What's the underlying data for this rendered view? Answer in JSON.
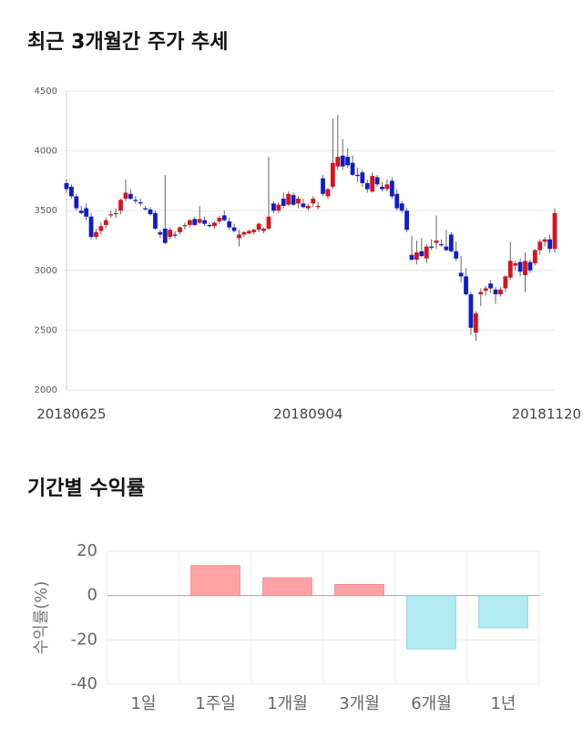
{
  "chart_data": [
    {
      "type": "candlestick",
      "title": "최근 3개월간 주가 추세",
      "categories": [
        null,
        "20180625",
        null,
        null,
        null,
        null,
        null,
        null,
        null,
        null,
        null,
        null,
        null,
        null,
        null,
        null,
        null,
        null,
        null,
        null,
        null,
        null,
        null,
        null,
        null,
        null,
        null,
        null,
        null,
        null,
        null,
        null,
        null,
        null,
        null,
        null,
        null,
        null,
        null,
        null,
        null,
        null,
        null,
        null,
        null,
        null,
        null,
        null,
        null,
        "20180904",
        null,
        null,
        null,
        null,
        null,
        null,
        null,
        null,
        null,
        null,
        null,
        null,
        null,
        null,
        null,
        null,
        null,
        null,
        null,
        null,
        null,
        null,
        null,
        null,
        null,
        null,
        null,
        null,
        null,
        null,
        null,
        null,
        null,
        null,
        null,
        null,
        null,
        null,
        null,
        null,
        null,
        null,
        null,
        null,
        null,
        null,
        null,
        null,
        null,
        "20181120"
      ],
      "open": [
        3730,
        3700,
        3620,
        3500,
        3520,
        3450,
        3280,
        3330,
        3380,
        3460,
        3470,
        3500,
        3600,
        3640,
        3590,
        3570,
        3520,
        3510,
        3480,
        3320,
        3350,
        3280,
        3300,
        3320,
        3370,
        3380,
        3430,
        3400,
        3420,
        3380,
        3370,
        3410,
        3460,
        3410,
        3360,
        3270,
        3300,
        3310,
        3320,
        3340,
        3330,
        3350,
        3560,
        3500,
        3600,
        3550,
        3630,
        3560,
        3560,
        3520,
        3560,
        3530,
        3770,
        3620,
        3700,
        3870,
        3960,
        3950,
        3900,
        3800,
        3820,
        3730,
        3660,
        3780,
        3700,
        3680,
        3750,
        3640,
        3560,
        3500,
        3130,
        3090,
        3160,
        3100,
        3200,
        3230,
        3220,
        3200,
        3300,
        3160,
        2980,
        2950,
        2800,
        2480,
        2800,
        2830,
        2890,
        2840,
        2800,
        2850,
        2940,
        3040,
        3070,
        2960,
        3070,
        3060,
        3170,
        3240,
        3260,
        3180
      ],
      "high": [
        3760,
        3720,
        3640,
        3540,
        3560,
        3480,
        3350,
        3400,
        3440,
        3500,
        3520,
        3600,
        3760,
        3680,
        3620,
        3600,
        3540,
        3530,
        3500,
        3340,
        3800,
        3360,
        3330,
        3370,
        3400,
        3430,
        3450,
        3540,
        3450,
        3400,
        3410,
        3460,
        3500,
        3440,
        3390,
        3340,
        3330,
        3340,
        3350,
        3400,
        3360,
        3950,
        3580,
        3570,
        3650,
        3660,
        3650,
        3620,
        3600,
        3560,
        3620,
        3570,
        3800,
        3690,
        4270,
        4300,
        4100,
        4020,
        3960,
        3860,
        3840,
        3760,
        3820,
        3800,
        3740,
        3760,
        3780,
        3680,
        3580,
        3520,
        3290,
        3250,
        3270,
        3220,
        3260,
        3460,
        3260,
        3340,
        3320,
        3240,
        3120,
        3020,
        2820,
        2660,
        2850,
        2870,
        2920,
        2860,
        2860,
        2960,
        3240,
        3080,
        3100,
        3150,
        3090,
        3180,
        3260,
        3280,
        3300,
        3520
      ],
      "low": [
        3650,
        3600,
        3500,
        3470,
        3420,
        3260,
        3260,
        3300,
        3350,
        3440,
        3440,
        3470,
        3580,
        3590,
        3560,
        3540,
        3500,
        3460,
        3340,
        3270,
        3220,
        3260,
        3270,
        3300,
        3340,
        3360,
        3370,
        3390,
        3370,
        3360,
        3350,
        3390,
        3410,
        3340,
        3320,
        3200,
        3280,
        3300,
        3300,
        3320,
        3310,
        3340,
        3480,
        3480,
        3520,
        3540,
        3540,
        3520,
        3520,
        3500,
        3530,
        3510,
        3620,
        3600,
        3680,
        3840,
        3840,
        3860,
        3790,
        3740,
        3700,
        3650,
        3650,
        3700,
        3660,
        3660,
        3600,
        3500,
        3480,
        3320,
        3080,
        3050,
        3110,
        3060,
        3170,
        3180,
        3200,
        3160,
        3150,
        3080,
        2900,
        2790,
        2460,
        2410,
        2700,
        2790,
        2810,
        2720,
        2780,
        2820,
        2920,
        3000,
        2950,
        2820,
        2980,
        3040,
        3130,
        3200,
        3150,
        3150
      ],
      "close": [
        3680,
        3620,
        3520,
        3480,
        3450,
        3280,
        3320,
        3370,
        3420,
        3470,
        3480,
        3590,
        3650,
        3600,
        3580,
        3560,
        3510,
        3470,
        3350,
        3300,
        3230,
        3340,
        3290,
        3360,
        3380,
        3420,
        3380,
        3430,
        3390,
        3370,
        3400,
        3440,
        3420,
        3360,
        3330,
        3300,
        3320,
        3330,
        3340,
        3390,
        3350,
        3450,
        3500,
        3550,
        3540,
        3640,
        3550,
        3600,
        3530,
        3540,
        3600,
        3540,
        3640,
        3680,
        3900,
        3950,
        3870,
        3880,
        3800,
        3790,
        3730,
        3680,
        3790,
        3720,
        3680,
        3720,
        3620,
        3520,
        3500,
        3340,
        3090,
        3150,
        3120,
        3200,
        3190,
        3250,
        3210,
        3170,
        3160,
        3100,
        2950,
        2800,
        2520,
        2640,
        2820,
        2850,
        2850,
        2800,
        2840,
        2950,
        3080,
        3060,
        2990,
        3080,
        3000,
        3170,
        3240,
        3260,
        3180,
        3480
      ],
      "up_color": "#d7141b",
      "down_color": "#0f1dc9",
      "ylim": [
        2000,
        4500
      ],
      "yticks": [
        2000,
        2500,
        3000,
        3500,
        4000,
        4500
      ],
      "grid": true
    },
    {
      "type": "bar",
      "title": "기간별 수익률",
      "ylabel": "수익률(%)",
      "categories": [
        "1일",
        "1주일",
        "1개월",
        "3개월",
        "6개월",
        "1년"
      ],
      "values": [
        0,
        13.5,
        8,
        5,
        -24,
        -14.5
      ],
      "positive_color": "#ffa3a6",
      "negative_color": "#b2ebf2",
      "ylim": [
        -40,
        20
      ],
      "yticks": [
        -40,
        -20,
        0,
        20
      ],
      "grid": true
    }
  ]
}
